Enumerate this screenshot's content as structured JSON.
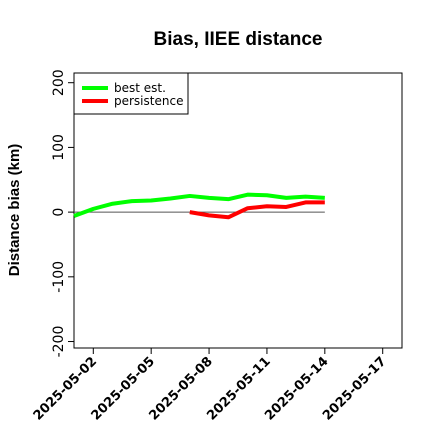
{
  "chart_data": {
    "type": "line",
    "title": "Bias, IIEE distance",
    "xlabel": "",
    "ylabel": "Distance bias (km)",
    "xlim": [
      "2025-05-01",
      "2025-05-18"
    ],
    "ylim": [
      -210,
      215
    ],
    "x_ticks": [
      "2025-05-02",
      "2025-05-05",
      "2025-05-08",
      "2025-05-11",
      "2025-05-14",
      "2025-05-17"
    ],
    "y_ticks": [
      -200,
      -100,
      0,
      100,
      200
    ],
    "y_tick_labels": [
      "-200",
      "-100",
      "0",
      "100",
      "200"
    ],
    "zero_line": true,
    "grid": false,
    "legend_position": "top-left",
    "series": [
      {
        "name": "best est.",
        "color": "#00ff00",
        "x": [
          "2025-05-01",
          "2025-05-02",
          "2025-05-03",
          "2025-05-04",
          "2025-05-05",
          "2025-05-06",
          "2025-05-07",
          "2025-05-08",
          "2025-05-09",
          "2025-05-10",
          "2025-05-11",
          "2025-05-12",
          "2025-05-13",
          "2025-05-14"
        ],
        "values": [
          -6,
          5,
          13,
          17,
          18,
          21,
          25,
          22,
          20,
          27,
          26,
          22,
          24,
          22
        ]
      },
      {
        "name": "persistence",
        "color": "#ff0000",
        "x": [
          "2025-05-07",
          "2025-05-08",
          "2025-05-09",
          "2025-05-10",
          "2025-05-11",
          "2025-05-12",
          "2025-05-13",
          "2025-05-14"
        ],
        "values": [
          0,
          -5,
          -8,
          6,
          9,
          8,
          15,
          15
        ]
      }
    ]
  }
}
